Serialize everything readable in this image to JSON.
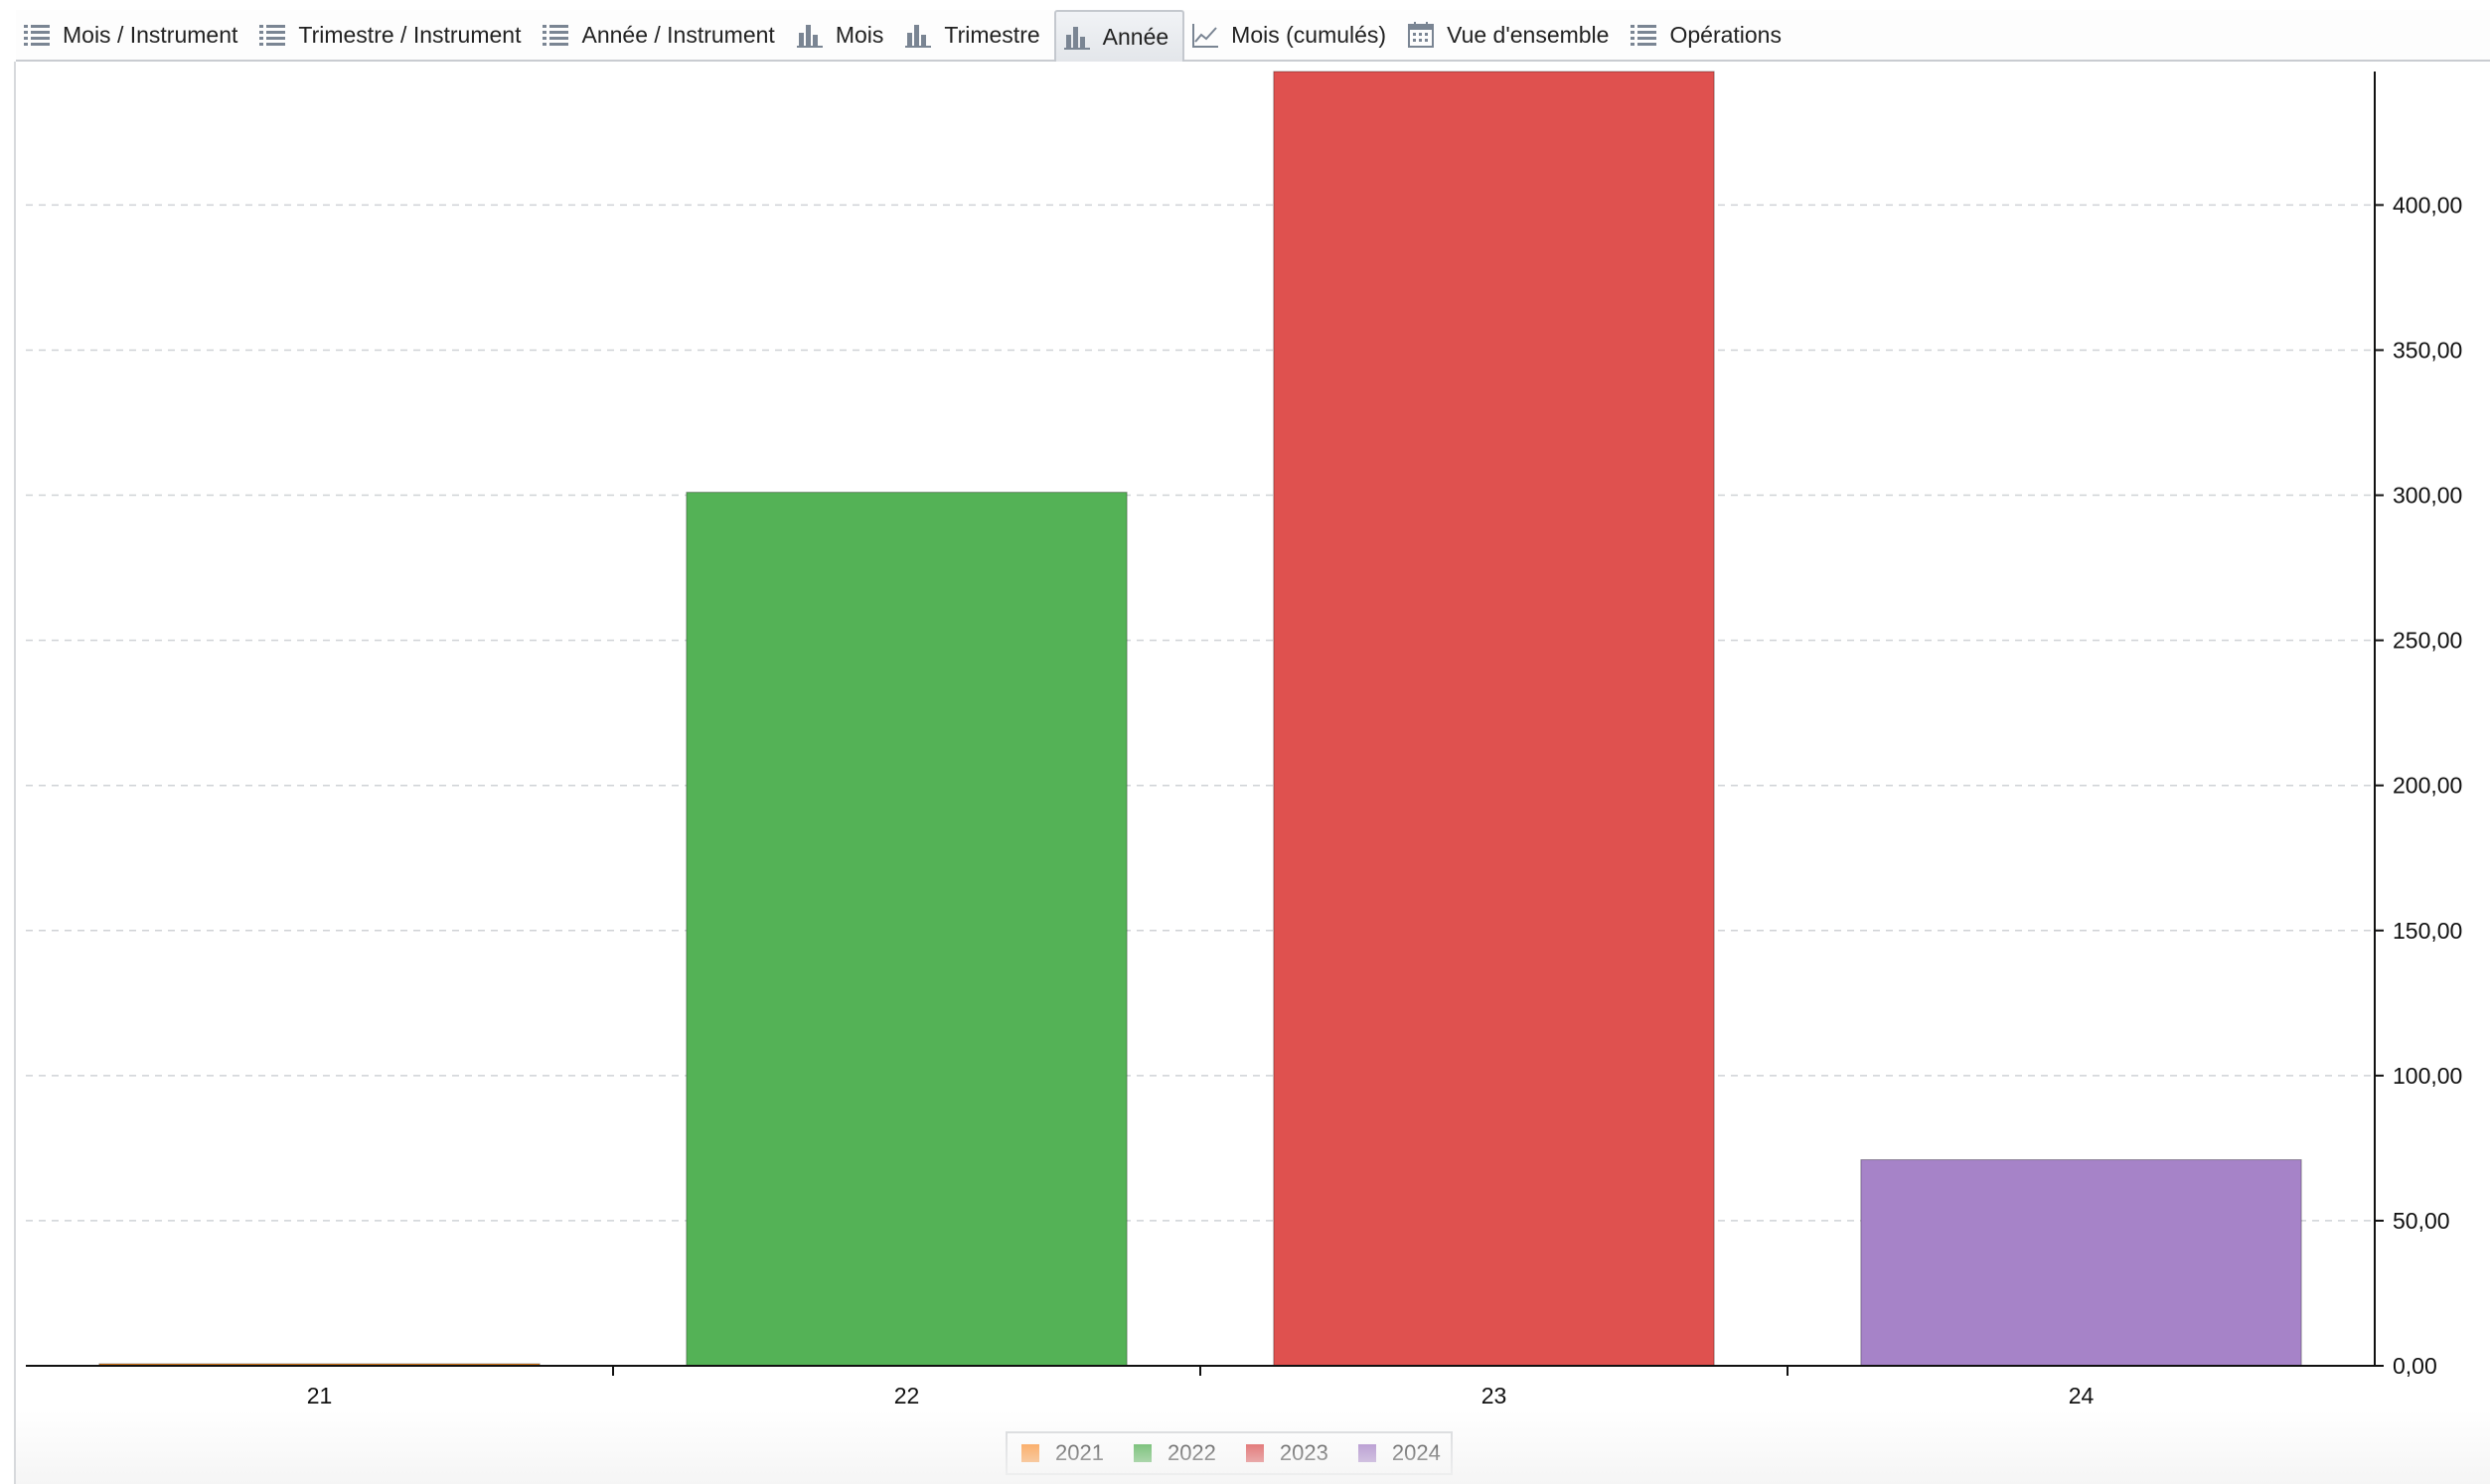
{
  "tabs": [
    {
      "label": "Mois / Instrument",
      "icon": "list-icon",
      "active": false
    },
    {
      "label": "Trimestre / Instrument",
      "icon": "list-icon",
      "active": false
    },
    {
      "label": "Année / Instrument",
      "icon": "list-icon",
      "active": false
    },
    {
      "label": "Mois",
      "icon": "bar-chart-icon",
      "active": false
    },
    {
      "label": "Trimestre",
      "icon": "bar-chart-icon",
      "active": false
    },
    {
      "label": "Année",
      "icon": "bar-chart-icon",
      "active": true
    },
    {
      "label": "Mois (cumulés)",
      "icon": "line-chart-icon",
      "active": false
    },
    {
      "label": "Vue d'ensemble",
      "icon": "calendar-icon",
      "active": false
    },
    {
      "label": "Opérations",
      "icon": "list-icon",
      "active": false
    }
  ],
  "chart_data": {
    "type": "bar",
    "categories": [
      "21",
      "22",
      "23",
      "24"
    ],
    "values": [
      0.5,
      301,
      446,
      71
    ],
    "colors": [
      "#f58518",
      "#54b256",
      "#df514f",
      "#a683c8"
    ],
    "ylim": [
      0,
      446
    ],
    "yticks": [
      "0,00",
      "50,00",
      "100,00",
      "150,00",
      "200,00",
      "250,00",
      "300,00",
      "350,00",
      "400,00"
    ],
    "ytick_values": [
      0,
      50,
      100,
      150,
      200,
      250,
      300,
      350,
      400
    ],
    "y_axis_side": "right",
    "grid": "horizontal dashed",
    "legend": {
      "placement": "bottom-center",
      "entries": [
        {
          "label": "2021",
          "color": "#ff7f0e"
        },
        {
          "label": "2022",
          "color": "#2ca02c"
        },
        {
          "label": "2023",
          "color": "#d62728"
        },
        {
          "label": "2024",
          "color": "#9467bd"
        }
      ]
    }
  }
}
